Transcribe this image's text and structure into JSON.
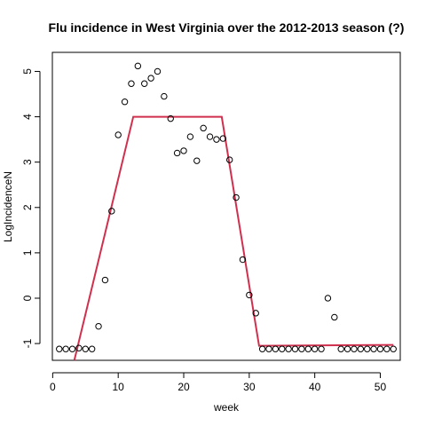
{
  "chart_data": {
    "type": "scatter",
    "title": "Flu incidence in West Virginia over the 2012-2013 season (?)",
    "xlabel": "week",
    "ylabel": "LogIncidenceN",
    "xlim": [
      -0.05,
      53.05
    ],
    "ylim": [
      -1.37,
      5.42
    ],
    "x_ticks": [
      0,
      10,
      20,
      30,
      40,
      50
    ],
    "y_ticks": [
      -1,
      0,
      1,
      2,
      3,
      4,
      5
    ],
    "grid": false,
    "points": {
      "x": [
        1,
        2,
        3,
        4,
        5,
        6,
        7,
        8,
        9,
        10,
        11,
        12,
        13,
        14,
        15,
        16,
        17,
        18,
        19,
        20,
        21,
        22,
        23,
        24,
        25,
        26,
        27,
        28,
        29,
        30,
        31,
        32,
        33,
        34,
        35,
        36,
        37,
        38,
        39,
        40,
        41,
        42,
        43,
        44,
        45,
        46,
        47,
        48,
        49,
        50,
        51,
        52
      ],
      "y": [
        -1.12,
        -1.12,
        -1.12,
        -1.1,
        -1.12,
        -1.12,
        -0.62,
        0.4,
        1.92,
        3.6,
        4.33,
        4.73,
        5.12,
        4.73,
        4.85,
        5.0,
        4.45,
        3.96,
        3.2,
        3.25,
        3.56,
        3.03,
        3.75,
        3.56,
        3.5,
        3.52,
        3.05,
        2.22,
        0.85,
        0.07,
        -0.33,
        -1.12,
        -1.12,
        -1.12,
        -1.12,
        -1.12,
        -1.12,
        -1.12,
        -1.12,
        -1.12,
        -1.12,
        0.0,
        -0.42,
        -1.12,
        -1.12,
        -1.12,
        -1.12,
        -1.12,
        -1.12,
        -1.12,
        -1.12,
        -1.12
      ]
    },
    "fit_line": {
      "color": "#d0304e",
      "x": [
        3.3,
        12.3,
        25.8,
        31.5,
        52.0
      ],
      "y": [
        -1.37,
        4.0,
        4.0,
        -1.05,
        -1.03
      ]
    }
  }
}
